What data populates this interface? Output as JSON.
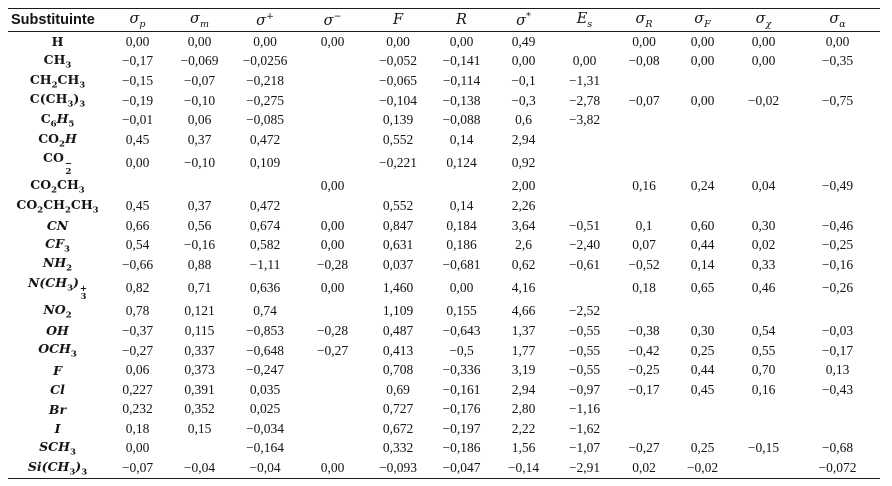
{
  "table": {
    "header": {
      "substituent_label": "Substituinte",
      "columns": [
        {
          "name": "sigma-p",
          "base": "σ",
          "sub": "p"
        },
        {
          "name": "sigma-m",
          "base": "σ",
          "sub": "m"
        },
        {
          "name": "sigma-plus",
          "base": "σ",
          "sup": "+"
        },
        {
          "name": "sigma-minus",
          "base": "σ",
          "sup": "−"
        },
        {
          "name": "F",
          "base": "F"
        },
        {
          "name": "R",
          "base": "R"
        },
        {
          "name": "sigma-star",
          "base": "σ",
          "sup": "*"
        },
        {
          "name": "Es",
          "base": "E",
          "sub": "s"
        },
        {
          "name": "sigma-R",
          "base": "σ",
          "sub": "R"
        },
        {
          "name": "sigma-F",
          "base": "σ",
          "sub": "F"
        },
        {
          "name": "sigma-chi",
          "base": "σ",
          "sub": "χ"
        },
        {
          "name": "sigma-alpha",
          "base": "σ",
          "sub": "α"
        }
      ]
    },
    "rows": [
      {
        "name": "H",
        "label_parts": [
          [
            "n",
            "H"
          ]
        ],
        "values": [
          "0,00",
          "0,00",
          "0,00",
          "0,00",
          "0,00",
          "0,00",
          "0,49",
          "",
          "0,00",
          "0,00",
          "0,00",
          "0,00"
        ]
      },
      {
        "name": "CH3",
        "label_parts": [
          [
            "n",
            "CH"
          ],
          [
            "s",
            "3"
          ]
        ],
        "values": [
          "−0,17",
          "−0,069",
          "−0,0256",
          "",
          "−0,052",
          "−0,141",
          "0,00",
          "0,00",
          "−0,08",
          "0,00",
          "0,00",
          "−0,35"
        ]
      },
      {
        "name": "CH2CH3",
        "label_parts": [
          [
            "n",
            "CH"
          ],
          [
            "s",
            "2"
          ],
          [
            "n",
            "CH"
          ],
          [
            "s",
            "3"
          ]
        ],
        "values": [
          "−0,15",
          "−0,07",
          "−0,218",
          "",
          "−0,065",
          "−0,114",
          "−0,1",
          "−1,31",
          "",
          "",
          "",
          ""
        ]
      },
      {
        "name": "C(CH3)3",
        "label_parts": [
          [
            "n",
            "C(CH"
          ],
          [
            "s",
            "3"
          ],
          [
            "n",
            ")"
          ],
          [
            "s",
            "3"
          ]
        ],
        "values": [
          "−0,19",
          "−0,10",
          "−0,275",
          "",
          "−0,104",
          "−0,138",
          "−0,3",
          "−2,78",
          "−0,07",
          "0,00",
          "−0,02",
          "−0,75"
        ]
      },
      {
        "name": "C6H5",
        "label_parts": [
          [
            "n",
            "C"
          ],
          [
            "s",
            "6"
          ],
          [
            "i",
            "H"
          ],
          [
            "s",
            "5"
          ]
        ],
        "values": [
          "−0,01",
          "0,06",
          "−0,085",
          "",
          "0,139",
          "−0,088",
          "0,6",
          "−3,82",
          "",
          "",
          "",
          ""
        ]
      },
      {
        "name": "CO2H",
        "label_parts": [
          [
            "n",
            "CO"
          ],
          [
            "s",
            "2"
          ],
          [
            "i",
            "H"
          ]
        ],
        "values": [
          "0,45",
          "0,37",
          "0,472",
          "",
          "0,552",
          "0,14",
          "2,94",
          "",
          "",
          "",
          "",
          ""
        ]
      },
      {
        "name": "CO2-",
        "label_parts": [
          [
            "n",
            "CO"
          ],
          [
            "k",
            "−",
            "2"
          ]
        ],
        "values": [
          "0,00",
          "−0,10",
          "0,109",
          "",
          "−0,221",
          "0,124",
          "0,92",
          "",
          "",
          "",
          "",
          ""
        ]
      },
      {
        "name": "CO2CH3",
        "label_parts": [
          [
            "n",
            "CO"
          ],
          [
            "s",
            "2"
          ],
          [
            "n",
            "CH"
          ],
          [
            "s",
            "3"
          ]
        ],
        "values": [
          "",
          "",
          "",
          "0,00",
          "",
          "",
          "2,00",
          "",
          "0,16",
          "0,24",
          "0,04",
          "−0,49"
        ]
      },
      {
        "name": "CO2CH2CH3",
        "label_parts": [
          [
            "n",
            "CO"
          ],
          [
            "s",
            "2"
          ],
          [
            "n",
            "CH"
          ],
          [
            "s",
            "2"
          ],
          [
            "n",
            "CH"
          ],
          [
            "s",
            "3"
          ]
        ],
        "values": [
          "0,45",
          "0,37",
          "0,472",
          "",
          "0,552",
          "0,14",
          "2,26",
          "",
          "",
          "",
          "",
          ""
        ]
      },
      {
        "name": "CN",
        "label_parts": [
          [
            "i",
            "CN"
          ]
        ],
        "values": [
          "0,66",
          "0,56",
          "0,674",
          "0,00",
          "0,847",
          "0,184",
          "3,64",
          "−0,51",
          "0,1",
          "0,60",
          "0,30",
          "−0,46"
        ]
      },
      {
        "name": "CF3",
        "label_parts": [
          [
            "i",
            "CF"
          ],
          [
            "s",
            "3"
          ]
        ],
        "values": [
          "0,54",
          "−0,16",
          "0,582",
          "0,00",
          "0,631",
          "0,186",
          "2,6",
          "−2,40",
          "0,07",
          "0,44",
          "0,02",
          "−0,25"
        ]
      },
      {
        "name": "NH2",
        "label_parts": [
          [
            "i",
            "NH"
          ],
          [
            "s",
            "2"
          ]
        ],
        "values": [
          "−0,66",
          "0,88",
          "−1,11",
          "−0,28",
          "0,037",
          "−0,681",
          "0,62",
          "−0,61",
          "−0,52",
          "0,14",
          "0,33",
          "−0,16"
        ]
      },
      {
        "name": "N(CH3)3+",
        "label_parts": [
          [
            "i",
            "N(CH"
          ],
          [
            "s",
            "3"
          ],
          [
            "i",
            ")"
          ],
          [
            "k",
            "+",
            "3"
          ]
        ],
        "values": [
          "0,82",
          "0,71",
          "0,636",
          "0,00",
          "1,460",
          "0,00",
          "4,16",
          "",
          "0,18",
          "0,65",
          "0,46",
          "−0,26"
        ]
      },
      {
        "name": "NO2",
        "label_parts": [
          [
            "i",
            "NO"
          ],
          [
            "s",
            "2"
          ]
        ],
        "values": [
          "0,78",
          "0,121",
          "0,74",
          "",
          "1,109",
          "0,155",
          "4,66",
          "−2,52",
          "",
          "",
          "",
          ""
        ]
      },
      {
        "name": "OH",
        "label_parts": [
          [
            "i",
            "OH"
          ]
        ],
        "values": [
          "−0,37",
          "0,115",
          "−0,853",
          "−0,28",
          "0,487",
          "−0,643",
          "1,37",
          "−0,55",
          "−0,38",
          "0,30",
          "0,54",
          "−0,03"
        ]
      },
      {
        "name": "OCH3",
        "label_parts": [
          [
            "i",
            "OCH"
          ],
          [
            "s",
            "3"
          ]
        ],
        "values": [
          "−0,27",
          "0,337",
          "−0,648",
          "−0,27",
          "0,413",
          "−0,5",
          "1,77",
          "−0,55",
          "−0,42",
          "0,25",
          "0,55",
          "−0,17"
        ]
      },
      {
        "name": "F",
        "label_parts": [
          [
            "i",
            "F"
          ]
        ],
        "values": [
          "0,06",
          "0,373",
          "−0,247",
          "",
          "0,708",
          "−0,336",
          "3,19",
          "−0,55",
          "−0,25",
          "0,44",
          "0,70",
          "0,13"
        ]
      },
      {
        "name": "Cl",
        "label_parts": [
          [
            "i",
            "Cl"
          ]
        ],
        "values": [
          "0,227",
          "0,391",
          "0,035",
          "",
          "0,69",
          "−0,161",
          "2,94",
          "−0,97",
          "−0,17",
          "0,45",
          "0,16",
          "−0,43"
        ]
      },
      {
        "name": "Br",
        "label_parts": [
          [
            "i",
            "Br"
          ]
        ],
        "values": [
          "0,232",
          "0,352",
          "0,025",
          "",
          "0,727",
          "−0,176",
          "2,80",
          "−1,16",
          "",
          "",
          "",
          ""
        ]
      },
      {
        "name": "I",
        "label_parts": [
          [
            "i",
            "I"
          ]
        ],
        "values": [
          "0,18",
          "0,15",
          "−0,034",
          "",
          "0,672",
          "−0,197",
          "2,22",
          "−1,62",
          "",
          "",
          "",
          ""
        ]
      },
      {
        "name": "SCH3",
        "label_parts": [
          [
            "i",
            "SCH"
          ],
          [
            "s",
            "3"
          ]
        ],
        "values": [
          "0,00",
          "",
          "−0,164",
          "",
          "0,332",
          "−0,186",
          "1,56",
          "−1,07",
          "−0,27",
          "0,25",
          "−0,15",
          "−0,68"
        ]
      },
      {
        "name": "Si(CH3)3",
        "label_parts": [
          [
            "i",
            "Si(CH"
          ],
          [
            "s",
            "3"
          ],
          [
            "i",
            ")"
          ],
          [
            "s",
            "3"
          ]
        ],
        "values": [
          "−0,07",
          "−0,04",
          "−0,04",
          "0,00",
          "−0,093",
          "−0,047",
          "−0,14",
          "−2,91",
          "0,02",
          "−0,02",
          "",
          "−0,072"
        ]
      }
    ]
  }
}
